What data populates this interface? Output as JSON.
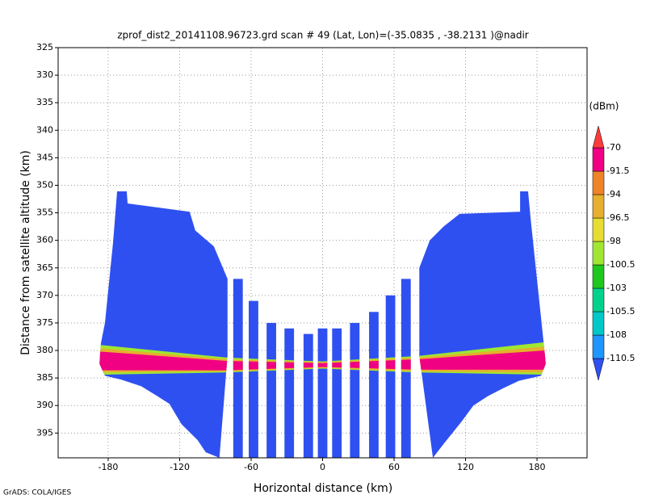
{
  "chart_data": {
    "type": "profile",
    "title": "zprof_dist2_20141108.96723.grd  scan # 49  (Lat, Lon)=(-35.0835 , -38.2131 )@nadir",
    "xlabel": "Horizontal distance (km)",
    "ylabel": "Distance from satellite altitude (km)",
    "footer": "GrADS: COLA/IGES",
    "colorbar_label": "(dBm)",
    "xlim": [
      -222,
      222
    ],
    "xticks": [
      -180,
      -120,
      -60,
      0,
      60,
      120,
      180
    ],
    "ylim": [
      325,
      399.5
    ],
    "yticks": [
      325,
      330,
      335,
      340,
      345,
      350,
      355,
      360,
      365,
      370,
      375,
      380,
      385,
      390,
      395
    ],
    "y_inverted": true,
    "grid": true,
    "levels": [
      -110.5,
      -108,
      -105.5,
      -103,
      -100.5,
      -98,
      -96.5,
      -94,
      -91.5,
      -70
    ],
    "colors": [
      "#2f50f0",
      "#1e96ff",
      "#00c8c8",
      "#00d28c",
      "#1ec81e",
      "#a0e632",
      "#e6dc32",
      "#e6af2d",
      "#f08228",
      "#f00082",
      "#fa3c3c"
    ],
    "swaths": [
      {
        "x": [
          -172.5,
          -164.4,
          -163.7,
          -111.6,
          -106.9,
          -91.3,
          -79.8,
          -79.8,
          -86.6,
          -98.1,
          -104.9,
          -118.4,
          -128.6,
          -138.7,
          -152.2,
          -169.1,
          -182.7,
          -187.4,
          -186.1,
          -182.7,
          -175.9
        ],
        "y": [
          351.1,
          351.1,
          353.3,
          354.8,
          358.2,
          361.1,
          367.0,
          380.9,
          399.5,
          398.5,
          396.3,
          393.4,
          389.7,
          388.3,
          386.5,
          385.3,
          384.6,
          382.4,
          378.7,
          375.0,
          360.4
        ]
      },
      {
        "x": [
          165.8,
          172.5,
          174.6,
          184.8,
          187.4,
          183.4,
          165.0,
          152.2,
          138.7,
          126.6,
          116.4,
          101.5,
          92.6,
          81.2,
          81.2,
          90.0,
          101.5,
          115.0,
          165.8
        ],
        "y": [
          351.1,
          351.1,
          356.0,
          377.0,
          382.4,
          384.6,
          385.5,
          386.8,
          388.3,
          390.0,
          393.0,
          397.0,
          399.5,
          381.0,
          365.0,
          360.0,
          357.5,
          355.2,
          354.8
        ]
      }
    ],
    "stripes": [
      {
        "x": [
          -75,
          -67
        ],
        "top": 367,
        "bottom": 399.5
      },
      {
        "x": [
          -62,
          -54
        ],
        "top": 371,
        "bottom": 399.5
      },
      {
        "x": [
          -47,
          -39
        ],
        "top": 375,
        "bottom": 399.5
      },
      {
        "x": [
          -32,
          -24
        ],
        "top": 376,
        "bottom": 399.5
      },
      {
        "x": [
          -16,
          -8
        ],
        "top": 377,
        "bottom": 399.5
      },
      {
        "x": [
          -4,
          4
        ],
        "top": 376,
        "bottom": 399.5
      },
      {
        "x": [
          8,
          16
        ],
        "top": 376,
        "bottom": 399.5
      },
      {
        "x": [
          23,
          31
        ],
        "top": 375,
        "bottom": 399.5
      },
      {
        "x": [
          39,
          47
        ],
        "top": 373,
        "bottom": 399.5
      },
      {
        "x": [
          53,
          61
        ],
        "top": 370,
        "bottom": 399.5
      },
      {
        "x": [
          66,
          74
        ],
        "top": 367,
        "bottom": 399.5
      }
    ],
    "band": [
      {
        "value": -100.5,
        "x": [
          -187,
          -80,
          0,
          80,
          187
        ],
        "top": [
          379.0,
          381.3,
          382.0,
          381.0,
          378.5
        ],
        "bottom": [
          384.4,
          384.0,
          383.3,
          384.0,
          384.4
        ]
      },
      {
        "value": -96.5,
        "x": [
          -187,
          -80,
          0,
          80,
          187
        ],
        "top": [
          379.6,
          381.6,
          382.1,
          381.3,
          379.3
        ],
        "bottom": [
          384.0,
          383.8,
          383.2,
          383.8,
          384.0
        ]
      },
      {
        "value": -91.5,
        "x": [
          -187,
          -80,
          0,
          80,
          187
        ],
        "top": [
          380.2,
          381.9,
          382.3,
          381.6,
          380.0
        ],
        "bottom": [
          383.6,
          383.6,
          383.0,
          383.5,
          383.5
        ]
      }
    ]
  }
}
